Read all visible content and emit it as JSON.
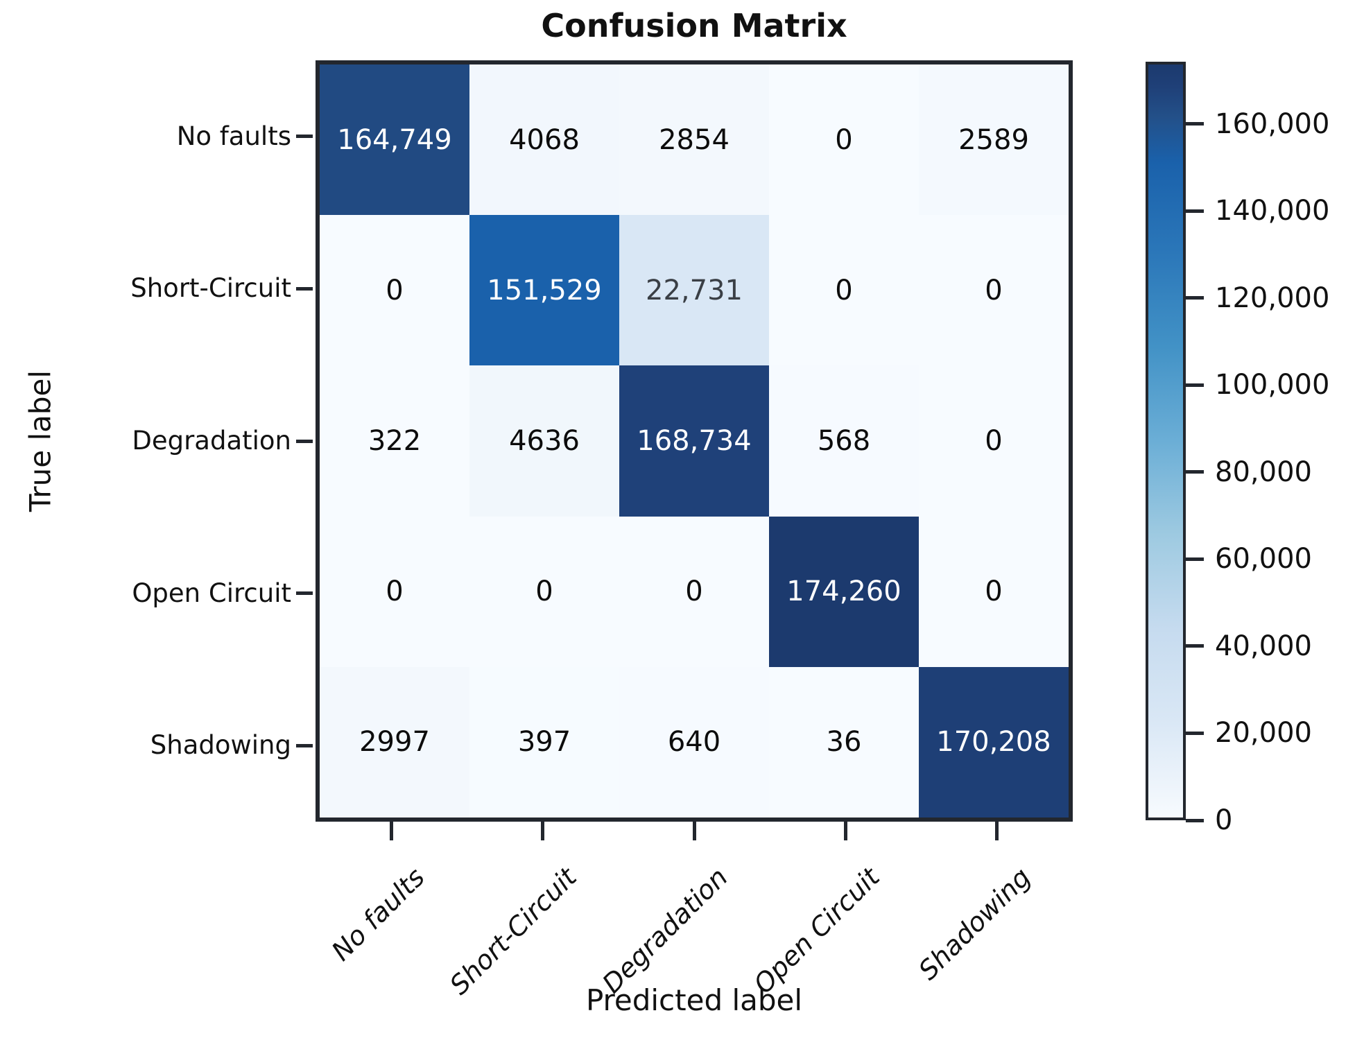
{
  "chart_data": {
    "type": "heatmap",
    "title": "Confusion Matrix",
    "xlabel": "Predicted label",
    "ylabel": "True label",
    "categories": [
      "No faults",
      "Short-Circuit",
      "Degradation",
      "Open Circuit",
      "Shadowing"
    ],
    "matrix": [
      [
        164749,
        4068,
        2854,
        0,
        2589
      ],
      [
        0,
        151529,
        22731,
        0,
        0
      ],
      [
        322,
        4636,
        168734,
        568,
        0
      ],
      [
        0,
        0,
        0,
        174260,
        0
      ],
      [
        2997,
        397,
        640,
        36,
        170208
      ]
    ],
    "matrix_display": [
      [
        "164,749",
        "4068",
        "2854",
        "0",
        "2589"
      ],
      [
        "0",
        "151,529",
        "22,731",
        "0",
        "0"
      ],
      [
        "322",
        "4636",
        "168,734",
        "568",
        "0"
      ],
      [
        "0",
        "0",
        "0",
        "174,260",
        "0"
      ],
      [
        "2997",
        "397",
        "640",
        "36",
        "170,208"
      ]
    ],
    "vmin": 0,
    "vmax": 174260,
    "legend_position": "right-colorbar",
    "grid": false,
    "colorbar_ticks": [
      {
        "value": 160000,
        "label": "160,000"
      },
      {
        "value": 140000,
        "label": "140,000"
      },
      {
        "value": 120000,
        "label": "120,000"
      },
      {
        "value": 100000,
        "label": "100,000"
      },
      {
        "value": 80000,
        "label": "80,000"
      },
      {
        "value": 60000,
        "label": "60,000"
      },
      {
        "value": 40000,
        "label": "40,000"
      },
      {
        "value": 20000,
        "label": "20,000"
      },
      {
        "value": 0,
        "label": "0"
      }
    ],
    "colormap_stops": [
      {
        "f": 0.0,
        "color": "#f7fbff"
      },
      {
        "f": 0.03,
        "color": "#f0f6fc"
      },
      {
        "f": 0.13,
        "color": "#d9e7f5"
      },
      {
        "f": 0.25,
        "color": "#c6dbef"
      },
      {
        "f": 0.375,
        "color": "#9ecae1"
      },
      {
        "f": 0.5,
        "color": "#6baed6"
      },
      {
        "f": 0.625,
        "color": "#4292c6"
      },
      {
        "f": 0.75,
        "color": "#2b77b9"
      },
      {
        "f": 0.87,
        "color": "#1a61ab"
      },
      {
        "f": 0.93,
        "color": "#235089"
      },
      {
        "f": 0.97,
        "color": "#1f4078"
      },
      {
        "f": 1.0,
        "color": "#1c3a6e"
      }
    ],
    "text_colors": {
      "dark_cell_text": "#ffffff",
      "mid_cell_text": "#3a3f45",
      "light_cell_text": "#0c0c0c"
    },
    "spine_color": "#23272e"
  }
}
